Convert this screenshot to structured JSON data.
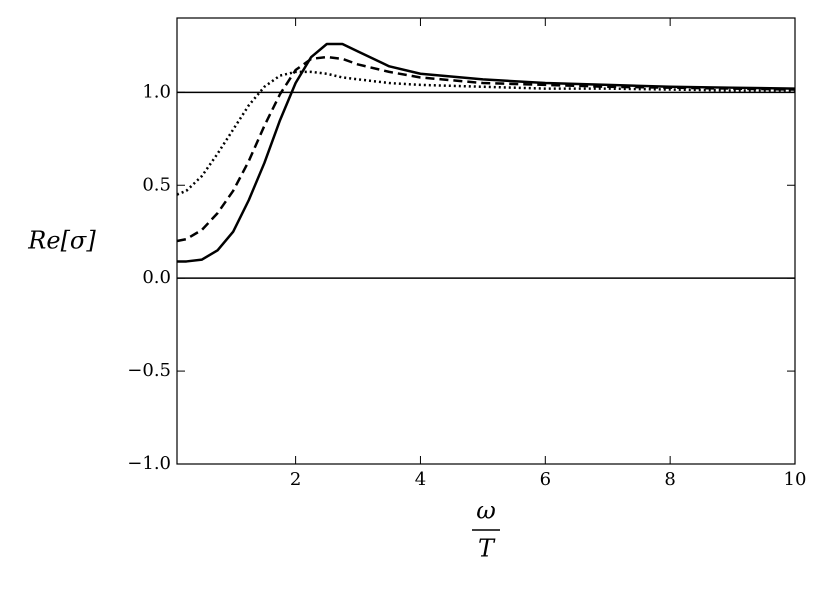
{
  "chart_data": {
    "type": "line",
    "xlabel": {
      "numerator": "ω",
      "denominator": "T"
    },
    "ylabel": "Re[σ]",
    "x": [
      0.1,
      0.25,
      0.5,
      0.75,
      1,
      1.25,
      1.5,
      1.75,
      2,
      2.25,
      2.5,
      2.75,
      3,
      3.5,
      4,
      5,
      6,
      7,
      8,
      9,
      10
    ],
    "series": [
      {
        "color": "#000000",
        "style": "solid",
        "values": [
          0.09,
          0.09,
          0.1,
          0.15,
          0.25,
          0.42,
          0.62,
          0.85,
          1.05,
          1.19,
          1.26,
          1.26,
          1.22,
          1.14,
          1.1,
          1.07,
          1.05,
          1.04,
          1.03,
          1.025,
          1.02
        ]
      },
      {
        "color": "#000000",
        "style": "dashed",
        "values": [
          0.2,
          0.21,
          0.26,
          0.35,
          0.47,
          0.63,
          0.82,
          0.99,
          1.12,
          1.18,
          1.19,
          1.18,
          1.15,
          1.11,
          1.08,
          1.05,
          1.04,
          1.03,
          1.025,
          1.02,
          1.015
        ]
      },
      {
        "color": "#000000",
        "style": "dotted",
        "values": [
          0.45,
          0.47,
          0.55,
          0.67,
          0.8,
          0.93,
          1.03,
          1.09,
          1.11,
          1.11,
          1.1,
          1.08,
          1.07,
          1.05,
          1.04,
          1.03,
          1.02,
          1.02,
          1.015,
          1.01,
          1.01
        ]
      }
    ],
    "hlines": [
      0,
      1
    ],
    "xlim": [
      0.1,
      10
    ],
    "ylim": [
      -1,
      1.4
    ],
    "xticks": [
      2,
      4,
      6,
      8,
      10
    ],
    "yticks": [
      {
        "value": -1,
        "label": "−1.0"
      },
      {
        "value": -0.5,
        "label": "−0.5"
      },
      {
        "value": 0,
        "label": "0.0"
      },
      {
        "value": 0.5,
        "label": "0.5"
      },
      {
        "value": 1,
        "label": "1.0"
      }
    ]
  }
}
